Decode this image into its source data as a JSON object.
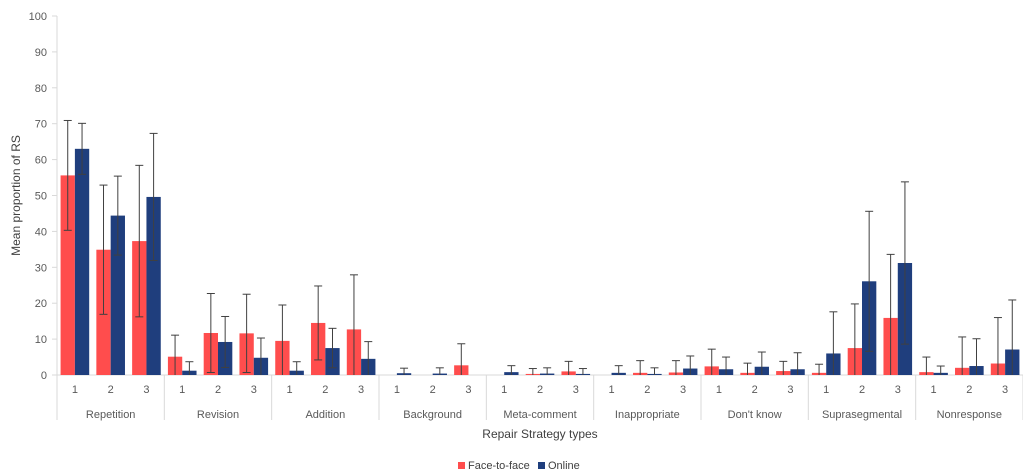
{
  "chart_data": {
    "type": "bar",
    "title": "",
    "xlabel": "Repair Strategy types",
    "ylabel": "Mean proportion of RS",
    "ylim": [
      0,
      100
    ],
    "yticks": [
      "0",
      "10",
      "20",
      "30",
      "40",
      "50",
      "60",
      "70",
      "80",
      "90",
      "100"
    ],
    "grid": false,
    "legend_position": "bottom",
    "groups": [
      "Repetition",
      "Revision",
      "Addition",
      "Background",
      "Meta-comment",
      "Inappropriate",
      "Don't know",
      "Suprasegmental",
      "Nonresponse"
    ],
    "subcategories": [
      "1",
      "2",
      "3"
    ],
    "series": [
      {
        "name": "Face-to-face",
        "color": "#ff4d4d",
        "values": [
          55.6,
          34.9,
          37.3,
          5.1,
          11.7,
          11.6,
          9.5,
          14.5,
          12.7,
          0,
          0,
          2.7,
          0,
          0.3,
          1.0,
          0,
          0.6,
          0.7,
          2.4,
          0.6,
          1.1,
          0.6,
          7.5,
          15.9,
          0.8,
          2.0,
          3.2
        ],
        "error_upper": [
          70.9,
          52.9,
          58.4,
          11.1,
          22.7,
          22.5,
          19.5,
          24.8,
          27.9,
          0,
          0,
          8.7,
          0,
          1.8,
          3.8,
          0,
          4.0,
          4.0,
          7.2,
          3.3,
          3.8,
          3.0,
          19.8,
          33.6,
          5.0,
          10.6,
          16.0
        ],
        "error_lower": [
          40.3,
          16.9,
          16.2,
          0,
          0.7,
          0.7,
          0,
          4.2,
          0,
          0,
          0,
          0,
          0,
          0,
          0,
          0,
          0,
          0,
          0,
          0,
          0,
          0,
          0,
          0,
          0,
          0,
          0
        ]
      },
      {
        "name": "Online",
        "color": "#1f3e7d",
        "values": [
          63.0,
          44.4,
          49.6,
          1.2,
          9.2,
          4.8,
          1.2,
          7.5,
          4.5,
          0.5,
          0.4,
          0,
          0.8,
          0.4,
          0.3,
          0.6,
          0.3,
          1.8,
          1.6,
          2.3,
          1.6,
          6.0,
          26.1,
          31.2,
          0.6,
          2.5,
          7.1
        ],
        "error_upper": [
          70.1,
          55.4,
          67.3,
          3.7,
          16.3,
          10.3,
          3.7,
          13.0,
          9.3,
          1.9,
          2.0,
          0,
          2.6,
          2.0,
          1.8,
          2.6,
          2.0,
          5.3,
          5.0,
          6.4,
          6.2,
          17.6,
          45.6,
          53.8,
          2.5,
          10.1,
          20.9
        ],
        "error_lower": [
          55.9,
          33.4,
          31.9,
          0,
          2.1,
          0,
          0,
          2.0,
          0,
          0,
          0,
          0,
          0,
          0,
          0,
          0,
          0,
          0,
          0,
          0,
          0,
          0,
          6.6,
          8.6,
          0,
          0,
          0
        ]
      }
    ]
  }
}
